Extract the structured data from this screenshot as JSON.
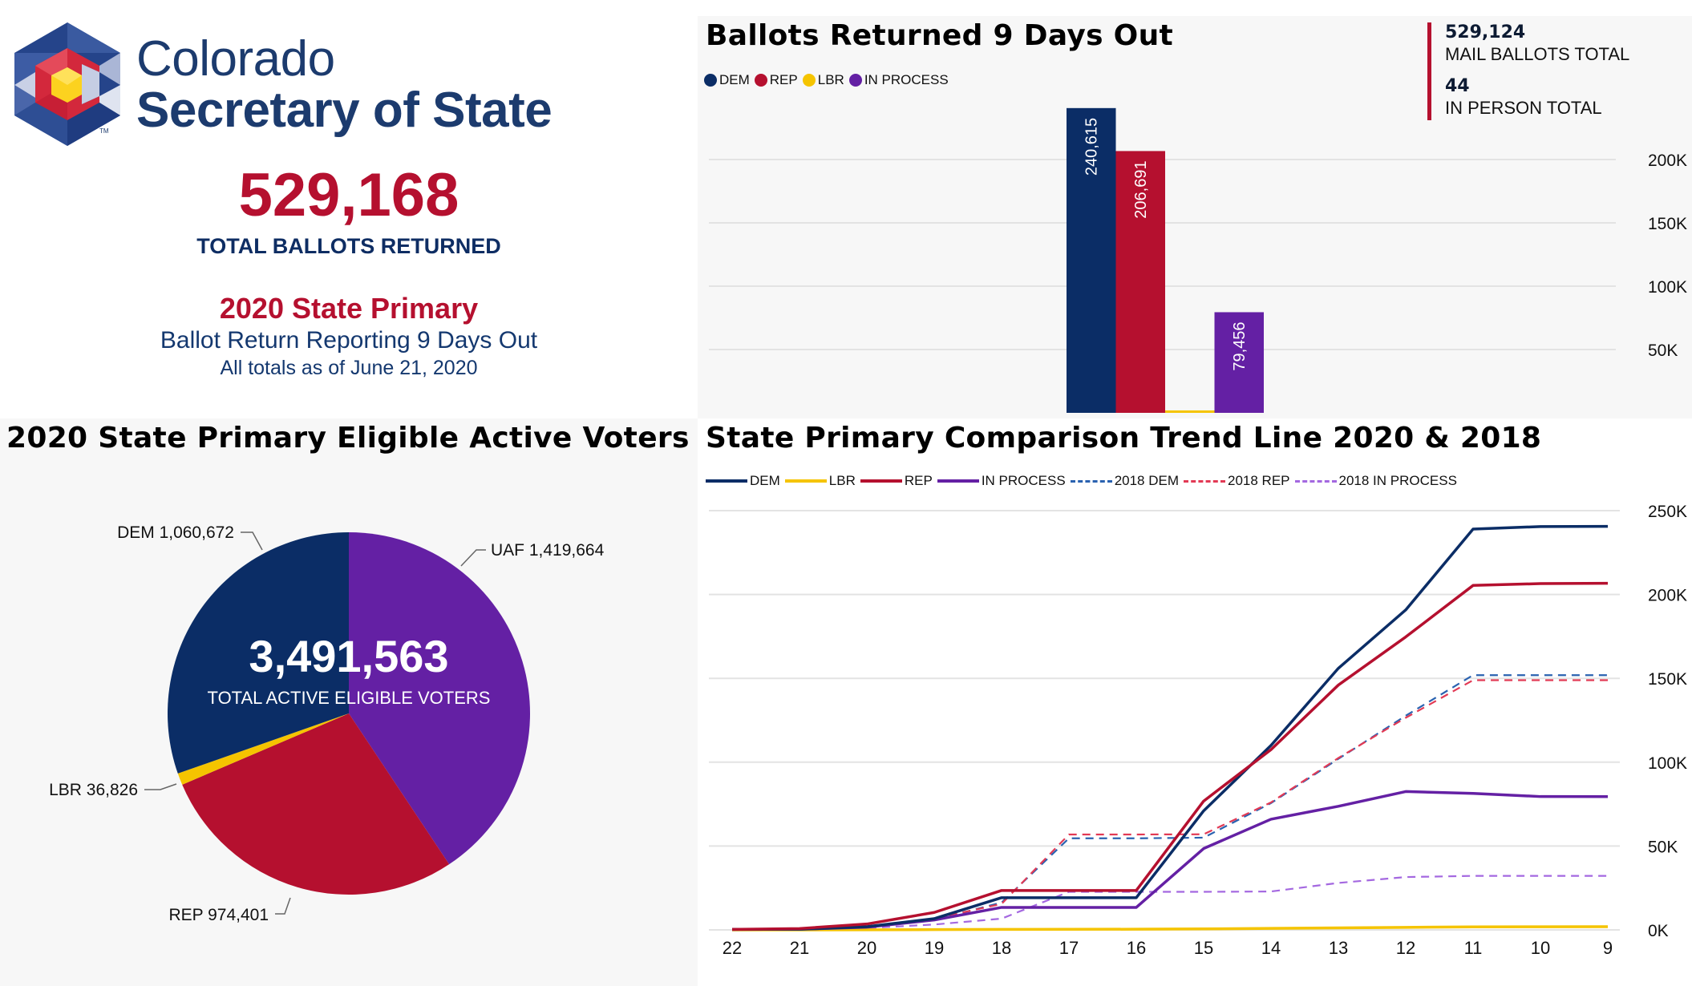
{
  "header": {
    "brand_line1": "Colorado",
    "brand_line2": "Secretary of State",
    "trademark": "TM",
    "total_ballots": "529,168",
    "total_ballots_label": "TOTAL BALLOTS RETURNED",
    "election": "2020 State Primary",
    "reporting": "Ballot Return Reporting 9 Days Out",
    "as_of": "All totals as of June 21, 2020"
  },
  "colors": {
    "dem": "#0b2d66",
    "rep": "#b5102f",
    "lbr": "#f5c400",
    "in_process": "#6420a4",
    "dem_2018": "#2a62b0",
    "rep_2018": "#e23a55",
    "in_process_2018": "#a468e0"
  },
  "stats": {
    "mail_total": "529,124",
    "mail_label": "MAIL BALLOTS TOTAL",
    "in_person_total": "44",
    "in_person_label": "IN PERSON TOTAL"
  },
  "chart_data": [
    {
      "type": "bar",
      "title": "Ballots Returned 9 Days Out",
      "categories": [
        "DEM",
        "REP",
        "LBR",
        "IN PROCESS"
      ],
      "values": [
        240615,
        206691,
        1900,
        79456
      ],
      "data_labels": [
        "240,615",
        "206,691",
        "",
        "79,456"
      ],
      "legend": [
        "DEM",
        "REP",
        "LBR",
        "IN PROCESS"
      ],
      "legend_position": "top-left",
      "yticks": [
        "50K",
        "100K",
        "150K",
        "200K"
      ],
      "ytick_values": [
        50000,
        100000,
        150000,
        200000
      ],
      "ylim": [
        0,
        240615
      ],
      "y_axis_side": "right",
      "grid": true
    },
    {
      "type": "pie",
      "title": "2020 State Primary Eligible Active Voters",
      "center_value": "3,491,563",
      "center_label": "TOTAL ACTIVE ELIGIBLE VOTERS",
      "slices": [
        {
          "name": "UAF",
          "value": 1419664,
          "label": "UAF 1,419,664"
        },
        {
          "name": "REP",
          "value": 974401,
          "label": "REP 974,401"
        },
        {
          "name": "LBR",
          "value": 36826,
          "label": "LBR 36,826"
        },
        {
          "name": "DEM",
          "value": 1060672,
          "label": "DEM 1,060,672"
        }
      ]
    },
    {
      "type": "line",
      "title": "State Primary Comparison Trend Line 2020 & 2018",
      "xlabel": "",
      "ylabel": "",
      "x": [
        "22",
        "21",
        "20",
        "19",
        "18",
        "17",
        "16",
        "15",
        "14",
        "13",
        "12",
        "11",
        "10",
        "9"
      ],
      "yticks": [
        "0K",
        "50K",
        "100K",
        "150K",
        "200K",
        "250K"
      ],
      "ytick_values": [
        0,
        50000,
        100000,
        150000,
        200000,
        250000
      ],
      "ylim": [
        0,
        250000
      ],
      "y_axis_side": "right",
      "grid": true,
      "legend_position": "top-left",
      "series": [
        {
          "name": "DEM",
          "key": "dem",
          "dashed": false,
          "values": [
            300,
            400,
            1900,
            6700,
            19200,
            19200,
            19200,
            71000,
            110000,
            156000,
            190800,
            239000,
            240500,
            240615
          ]
        },
        {
          "name": "LBR",
          "key": "lbr",
          "dashed": false,
          "values": [
            0,
            0,
            50,
            150,
            300,
            350,
            400,
            600,
            900,
            1200,
            1500,
            1800,
            1850,
            1900
          ]
        },
        {
          "name": "REP",
          "key": "rep",
          "dashed": false,
          "values": [
            300,
            800,
            3500,
            10400,
            23500,
            23500,
            23500,
            76800,
            107500,
            146000,
            174700,
            205400,
            206500,
            206691
          ]
        },
        {
          "name": "IN PROCESS",
          "key": "in_process",
          "dashed": false,
          "values": [
            300,
            400,
            1600,
            5900,
            13400,
            13400,
            13400,
            48500,
            66000,
            73700,
            82500,
            81400,
            79500,
            79456
          ]
        },
        {
          "name": "2018 DEM",
          "key": "dem_2018",
          "dashed": true,
          "values": [
            200,
            300,
            1900,
            5900,
            16300,
            54600,
            54600,
            55000,
            75600,
            102000,
            127700,
            151900,
            151900,
            151900
          ]
        },
        {
          "name": "2018 REP",
          "key": "rep_2018",
          "dashed": true,
          "values": [
            200,
            300,
            1900,
            6700,
            15500,
            56900,
            56900,
            57000,
            76000,
            102500,
            126500,
            148900,
            148900,
            148900
          ]
        },
        {
          "name": "2018 IN PROCESS",
          "key": "in_process_2018",
          "dashed": true,
          "values": [
            200,
            300,
            1100,
            3200,
            6700,
            22700,
            22700,
            22700,
            22900,
            28000,
            31500,
            32200,
            32200,
            32200
          ]
        }
      ]
    }
  ]
}
